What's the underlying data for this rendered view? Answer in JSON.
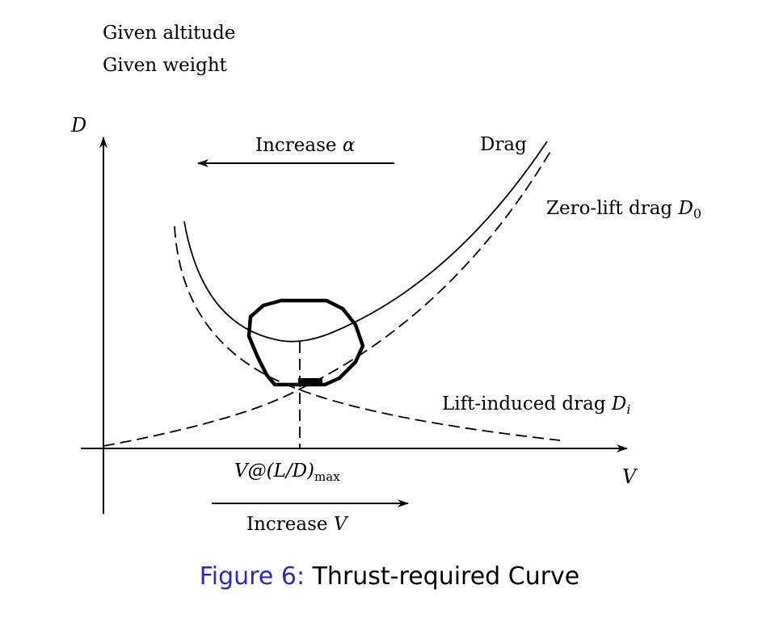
{
  "given": {
    "line1": "Given altitude",
    "line2": "Given weight"
  },
  "axes": {
    "y_label": "D",
    "x_label": "V"
  },
  "labels": {
    "increase_alpha_text": "Increase ",
    "increase_alpha_symbol": "α",
    "drag": "Drag",
    "zero_lift_text": "Zero-lift drag ",
    "zero_lift_symbol": "D",
    "zero_lift_sub": "0",
    "lift_induced_text": "Lift-induced drag ",
    "lift_induced_symbol": "D",
    "lift_induced_sub": "i",
    "vld_prefix": "V@(L/D)",
    "vld_sub": "max",
    "increase_v_text": "Increase ",
    "increase_v_symbol": "V"
  },
  "caption": {
    "figure_number": "Figure 6:",
    "title": "Thrust-required Curve"
  },
  "colors": {
    "ink": "#000000",
    "caption_link": "#2b2bb5"
  }
}
